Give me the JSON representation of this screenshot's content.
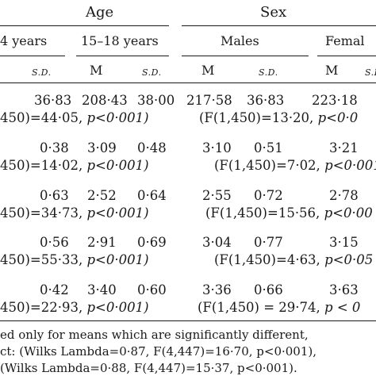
{
  "headers": {
    "age": "Age",
    "sex": "Sex",
    "age_groups": [
      "4 years",
      "15–18 years"
    ],
    "sex_groups": [
      "Males",
      "Femal"
    ]
  },
  "subheaders": {
    "m": "M",
    "sd": "S.D."
  },
  "rows": [
    {
      "a_sd": "36·83",
      "b_m": "208·43",
      "b_sd": "38·00",
      "male_m": "217·58",
      "male_sd": "36·83",
      "fem_m": "223·18",
      "age_stat": "450)=44·05, ",
      "age_p": "p<0·001)",
      "sex_stat": "(F(1,450)=13·20, ",
      "sex_p": "p<0·0"
    },
    {
      "a_sd": "0·38",
      "b_m": "3·09",
      "b_sd": "0·48",
      "male_m": "3·10",
      "male_sd": "0·51",
      "fem_m": "3·21",
      "age_stat": "450)=14·02, ",
      "age_p": "p<0·001)",
      "sex_stat": "(F(1,450)=7·02, ",
      "sex_p": "p<0·001"
    },
    {
      "a_sd": "0·63",
      "b_m": "2·52",
      "b_sd": "0·64",
      "male_m": "2·55",
      "male_sd": "0·72",
      "fem_m": "2·78",
      "age_stat": "450)=34·73, ",
      "age_p": "p<0·001)",
      "sex_stat": "(F(1,450)=15·56, ",
      "sex_p": "p<0·00"
    },
    {
      "a_sd": "0·56",
      "b_m": "2·91",
      "b_sd": "0·69",
      "male_m": "3·04",
      "male_sd": "0·77",
      "fem_m": "3·15",
      "age_stat": "450)=55·33, ",
      "age_p": "p<0·001)",
      "sex_stat": "(F(1,450)=4·63, ",
      "sex_p": "p<0·05"
    },
    {
      "a_sd": "0·42",
      "b_m": "3·40",
      "b_sd": "0·60",
      "male_m": "3·36",
      "male_sd": "0·66",
      "fem_m": "3·63",
      "age_stat": "450)=22·93, ",
      "age_p": "p<0·001)",
      "sex_stat": "(F(1,450) = 29·74, ",
      "sex_p": "p < 0"
    }
  ],
  "notes": [
    "ed only for means which are significantly different,",
    "ct: (Wilks Lambda=0·87, F(4,447)=16·70, p<0·001),",
    "(Wilks Lambda=0·88, F(4,447)=15·37, p<0·001)."
  ]
}
